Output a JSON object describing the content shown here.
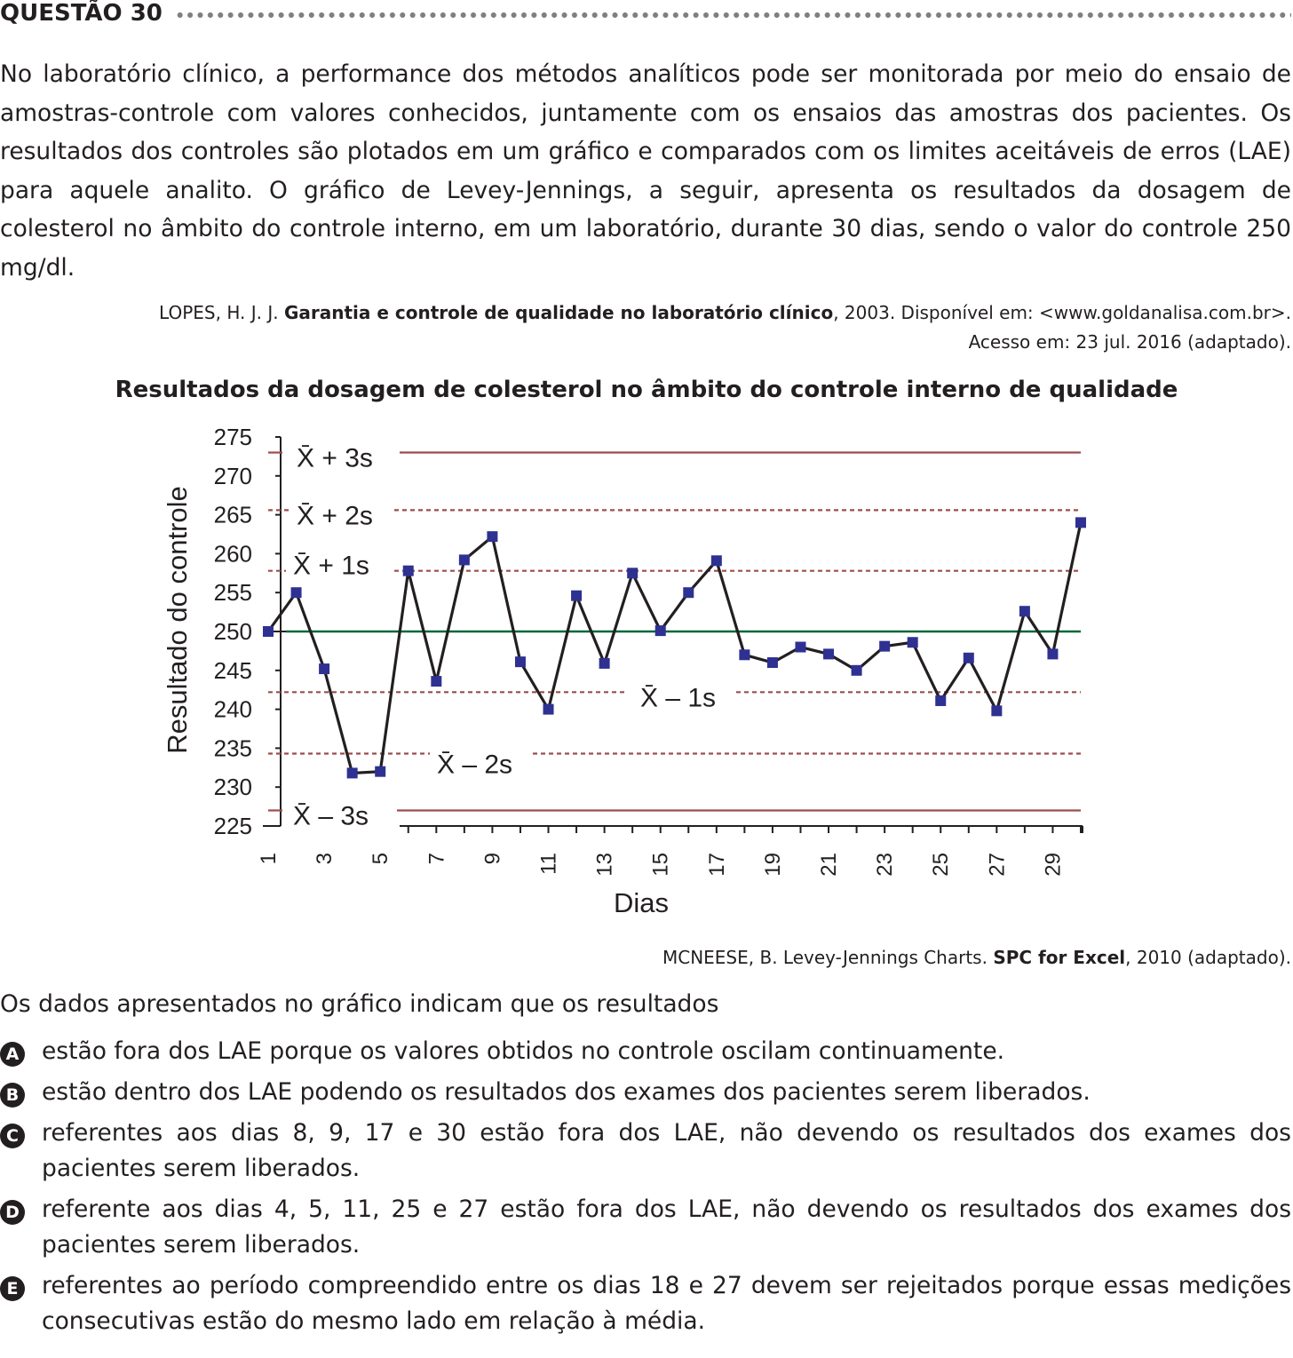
{
  "header": {
    "title": "QUESTÃO 30"
  },
  "intro": {
    "text": "No laboratório clínico, a performance dos métodos analíticos pode ser monitorada por meio do ensaio de amostras-controle com valores conhecidos, juntamente com os ensaios das amostras dos pacientes. Os resultados dos controles são plotados em um gráfico e comparados com os limites aceitáveis de erros (LAE) para aquele analito. O gráfico de Levey-Jennings, a seguir, apresenta os resultados da dosagem de colesterol no âmbito do controle interno, em um laboratório, durante 30 dias, sendo o valor do controle 250 mg/dl."
  },
  "citation1": {
    "prefix": "LOPES, H. J. J. ",
    "bold": "Garantia e controle de qualidade no laboratório clínico",
    "suffix": ", 2003. Disponível em: <www.goldanalisa.com.br>.",
    "line2": "Acesso em: 23 jul. 2016 (adaptado)."
  },
  "chart_data": {
    "type": "line",
    "title": "Resultados da dosagem de colesterol no âmbito do controle interno de qualidade",
    "xlabel": "Dias",
    "ylabel": "Resultado do controle",
    "ylim": [
      225,
      275
    ],
    "yticks": [
      225,
      230,
      235,
      240,
      245,
      250,
      255,
      260,
      265,
      270,
      275
    ],
    "xticks": [
      1,
      3,
      5,
      7,
      9,
      11,
      13,
      15,
      17,
      19,
      21,
      23,
      25,
      27,
      29
    ],
    "x": [
      1,
      2,
      3,
      4,
      5,
      6,
      7,
      8,
      9,
      10,
      11,
      12,
      13,
      14,
      15,
      16,
      17,
      18,
      19,
      20,
      21,
      22,
      23,
      24,
      25,
      26,
      27,
      28,
      29,
      30
    ],
    "values": [
      250,
      255,
      245.2,
      231.8,
      232,
      257.8,
      243.6,
      259.2,
      262.2,
      246.1,
      240,
      254.6,
      245.9,
      257.5,
      250.1,
      255,
      259.1,
      247,
      246,
      248,
      247.1,
      245,
      248.1,
      248.6,
      241.1,
      246.6,
      239.8,
      252.6,
      247.1,
      264
    ],
    "mean": 250,
    "control_lines": [
      {
        "label": "X̄ + 3s",
        "value": 273,
        "style": "solid",
        "color": "#9b4d4d"
      },
      {
        "label": "X̄ + 2s",
        "value": 265.6,
        "style": "dashed",
        "color": "#9b4d4d"
      },
      {
        "label": "X̄ + 1s",
        "value": 257.8,
        "style": "dashed",
        "color": "#9b4d4d"
      },
      {
        "label": "X̄ – 1s",
        "value": 242.2,
        "style": "dashed",
        "color": "#9b4d4d"
      },
      {
        "label": "X̄ – 2s",
        "value": 234.3,
        "style": "dashed",
        "color": "#9b4d4d"
      },
      {
        "label": "X̄ – 3s",
        "value": 227,
        "style": "solid",
        "color": "#9b4d4d"
      }
    ],
    "colors": {
      "series": "#231f20",
      "marker": "#2e3192",
      "mean": "#006838",
      "limits": "#9b4d4d"
    }
  },
  "citation2": {
    "prefix": "MCNEESE, B. Levey-Jennings Charts. ",
    "bold": "SPC for Excel",
    "suffix": ", 2010 (adaptado)."
  },
  "question": "Os dados apresentados no gráfico indicam que os resultados",
  "options": [
    {
      "letter": "A",
      "text": "estão fora dos LAE porque os valores obtidos no controle oscilam continuamente."
    },
    {
      "letter": "B",
      "text": "estão dentro dos LAE podendo os resultados dos exames dos pacientes serem liberados."
    },
    {
      "letter": "C",
      "text": "referentes aos dias 8, 9, 17 e 30 estão fora dos LAE, não devendo os resultados dos exames dos pacientes serem liberados."
    },
    {
      "letter": "D",
      "text": "referente aos dias 4, 5, 11, 25 e 27 estão fora dos LAE, não devendo os resultados dos exames dos pacientes serem liberados."
    },
    {
      "letter": "E",
      "text": "referentes ao período compreendido entre os dias 18 e 27 devem ser rejeitados porque essas medições consecutivas estão do mesmo lado em relação à média."
    }
  ]
}
